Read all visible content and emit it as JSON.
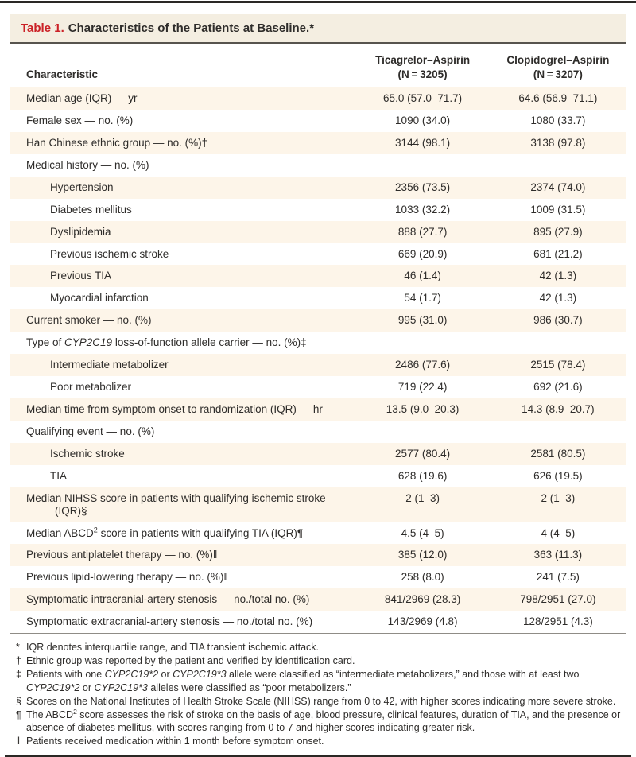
{
  "title": {
    "label": "Table 1.",
    "text": "Characteristics of the Patients at Baseline.*"
  },
  "colors": {
    "accent_red": "#cb2127",
    "row_shade": "#fdf5e9",
    "title_bar": "#f4eee1"
  },
  "table": {
    "header": {
      "characteristic": "Characteristic",
      "group1": {
        "name": "Ticagrelor–Aspirin",
        "n": "(N = 3205)"
      },
      "group2": {
        "name": "Clopidogrel–Aspirin",
        "n": "(N = 3207)"
      }
    },
    "rows": [
      {
        "indent": 0,
        "label": [
          {
            "t": "Median age (IQR) — yr"
          }
        ],
        "v1": "65.0 (57.0–71.7)",
        "v2": "64.6 (56.9–71.1)"
      },
      {
        "indent": 0,
        "label": [
          {
            "t": "Female sex — no. (%)"
          }
        ],
        "v1": "1090 (34.0)",
        "v2": "1080 (33.7)"
      },
      {
        "indent": 0,
        "label": [
          {
            "t": "Han Chinese ethnic group — no. (%)†"
          }
        ],
        "v1": "3144 (98.1)",
        "v2": "3138 (97.8)"
      },
      {
        "indent": 0,
        "label": [
          {
            "t": "Medical history — no. (%)"
          }
        ],
        "v1": "",
        "v2": ""
      },
      {
        "indent": 1,
        "label": [
          {
            "t": "Hypertension"
          }
        ],
        "v1": "2356 (73.5)",
        "v2": "2374 (74.0)"
      },
      {
        "indent": 1,
        "label": [
          {
            "t": "Diabetes mellitus"
          }
        ],
        "v1": "1033 (32.2)",
        "v2": "1009 (31.5)"
      },
      {
        "indent": 1,
        "label": [
          {
            "t": "Dyslipidemia"
          }
        ],
        "v1": "888 (27.7)",
        "v2": "895 (27.9)"
      },
      {
        "indent": 1,
        "label": [
          {
            "t": "Previous ischemic stroke"
          }
        ],
        "v1": "669 (20.9)",
        "v2": "681 (21.2)"
      },
      {
        "indent": 1,
        "label": [
          {
            "t": "Previous TIA"
          }
        ],
        "v1": "46 (1.4)",
        "v2": "42 (1.3)"
      },
      {
        "indent": 1,
        "label": [
          {
            "t": "Myocardial infarction"
          }
        ],
        "v1": "54 (1.7)",
        "v2": "42 (1.3)"
      },
      {
        "indent": 0,
        "label": [
          {
            "t": "Current smoker — no. (%)"
          }
        ],
        "v1": "995 (31.0)",
        "v2": "986 (30.7)"
      },
      {
        "indent": 0,
        "label": [
          {
            "t": "Type of "
          },
          {
            "t": "CYP2C19",
            "i": true
          },
          {
            "t": " loss-of-function allele carrier — no. (%)‡"
          }
        ],
        "v1": "",
        "v2": ""
      },
      {
        "indent": 1,
        "label": [
          {
            "t": "Intermediate metabolizer"
          }
        ],
        "v1": "2486 (77.6)",
        "v2": "2515 (78.4)"
      },
      {
        "indent": 1,
        "label": [
          {
            "t": "Poor metabolizer"
          }
        ],
        "v1": "719 (22.4)",
        "v2": "692 (21.6)"
      },
      {
        "indent": 0,
        "label": [
          {
            "t": "Median time from symptom onset to randomization (IQR) — hr"
          }
        ],
        "v1": "13.5 (9.0–20.3)",
        "v2": "14.3 (8.9–20.7)"
      },
      {
        "indent": 0,
        "label": [
          {
            "t": "Qualifying event — no. (%)"
          }
        ],
        "v1": "",
        "v2": ""
      },
      {
        "indent": 1,
        "label": [
          {
            "t": "Ischemic stroke"
          }
        ],
        "v1": "2577 (80.4)",
        "v2": "2581 (80.5)"
      },
      {
        "indent": 1,
        "label": [
          {
            "t": "TIA"
          }
        ],
        "v1": "628 (19.6)",
        "v2": "626 (19.5)"
      },
      {
        "indent": 0,
        "label": [
          {
            "t": "Median NIHSS score in patients with qualifying ischemic stroke (IQR)§"
          }
        ],
        "v1": "2 (1–3)",
        "v2": "2 (1–3)"
      },
      {
        "indent": 0,
        "label": [
          {
            "t": "Median ABCD"
          },
          {
            "t": "2",
            "sup": true
          },
          {
            "t": " score in patients with qualifying TIA (IQR)¶"
          }
        ],
        "v1": "4.5 (4–5)",
        "v2": "4 (4–5)"
      },
      {
        "indent": 0,
        "label": [
          {
            "t": "Previous antiplatelet therapy — no. (%)‖"
          }
        ],
        "v1": "385 (12.0)",
        "v2": "363 (11.3)"
      },
      {
        "indent": 0,
        "label": [
          {
            "t": "Previous lipid-lowering therapy — no. (%)‖"
          }
        ],
        "v1": "258 (8.0)",
        "v2": "241 (7.5)"
      },
      {
        "indent": 0,
        "label": [
          {
            "t": "Symptomatic intracranial-artery stenosis — no./total no. (%)"
          }
        ],
        "v1": "841/2969 (28.3)",
        "v2": "798/2951 (27.0)"
      },
      {
        "indent": 0,
        "label": [
          {
            "t": "Symptomatic extracranial-artery stenosis — no./total no. (%)"
          }
        ],
        "v1": "143/2969 (4.8)",
        "v2": "128/2951 (4.3)"
      }
    ]
  },
  "footnotes": [
    {
      "marker": "*",
      "segments": [
        {
          "t": "IQR denotes interquartile range, and TIA transient ischemic attack."
        }
      ]
    },
    {
      "marker": "†",
      "segments": [
        {
          "t": "Ethnic group was reported by the patient and verified by identification card."
        }
      ]
    },
    {
      "marker": "‡",
      "segments": [
        {
          "t": "Patients with one "
        },
        {
          "t": "CYP2C19*2",
          "i": true
        },
        {
          "t": " or "
        },
        {
          "t": "CYP2C19*3",
          "i": true
        },
        {
          "t": " allele were classified as “intermediate metabolizers,” and those with at least two "
        },
        {
          "t": "CYP2C19*2",
          "i": true
        },
        {
          "t": " or "
        },
        {
          "t": "CYP2C19*3",
          "i": true
        },
        {
          "t": " alleles were classified as “poor metabolizers.”"
        }
      ]
    },
    {
      "marker": "§",
      "segments": [
        {
          "t": "Scores on the National Institutes of Health Stroke Scale (NIHSS) range from 0 to 42, with higher scores indicating more severe stroke."
        }
      ]
    },
    {
      "marker": "¶",
      "segments": [
        {
          "t": "The ABCD"
        },
        {
          "t": "2",
          "sup": true
        },
        {
          "t": " score assesses the risk of stroke on the basis of age, blood pressure, clinical features, duration of TIA, and the presence or absence of diabetes mellitus, with scores ranging from 0 to 7 and higher scores indicating greater risk."
        }
      ]
    },
    {
      "marker": "‖",
      "segments": [
        {
          "t": "Patients received medication within 1 month before symptom onset."
        }
      ]
    }
  ]
}
